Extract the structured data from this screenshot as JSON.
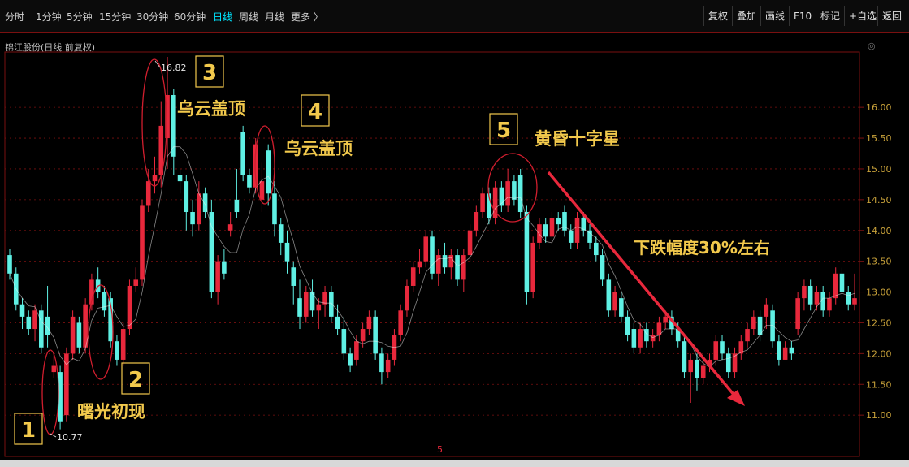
{
  "toolbar": {
    "tabs": [
      "分时",
      "1分钟",
      "5分钟",
      "15分钟",
      "30分钟",
      "60分钟",
      "日线",
      "周线",
      "月线",
      "更多 〉"
    ],
    "active_tab": "日线",
    "buttons": [
      "复权",
      "叠加",
      "画线",
      "F10",
      "标记",
      "+自选",
      "返回"
    ]
  },
  "stock_title": "锦江股份(日线 前复权)",
  "corner_mark": "◎",
  "colors": {
    "up": "#e8283c",
    "down": "#5ff0e4",
    "grid": "#7a1010",
    "annotation": "#f2c94c",
    "arrow": "#e8283c",
    "ma": "#f5f5f5"
  },
  "chart_data": {
    "type": "candlestick",
    "ylim": [
      10.6,
      16.9
    ],
    "y_ticks": [
      "16.00",
      "15.50",
      "15.00",
      "14.50",
      "14.00",
      "13.50",
      "13.00",
      "12.50",
      "12.00",
      "11.50",
      "11.00"
    ],
    "high_label": "16.82",
    "low_label": "10.77",
    "bottom_marker": "5",
    "candles": [
      [
        13.6,
        13.3,
        13.7,
        13.2
      ],
      [
        13.3,
        12.8,
        13.4,
        12.7
      ],
      [
        12.8,
        12.6,
        12.9,
        12.4
      ],
      [
        12.6,
        12.4,
        12.7,
        12.3
      ],
      [
        12.4,
        12.7,
        12.8,
        12.2
      ],
      [
        12.7,
        12.1,
        12.8,
        12.0
      ],
      [
        12.6,
        12.3,
        13.1,
        12.1
      ],
      [
        11.7,
        11.8,
        12.0,
        11.6
      ],
      [
        11.7,
        10.9,
        11.8,
        10.77
      ],
      [
        11.0,
        12.0,
        12.1,
        10.9
      ],
      [
        12.0,
        12.6,
        12.7,
        11.9
      ],
      [
        12.5,
        12.1,
        12.6,
        12.0
      ],
      [
        12.1,
        12.8,
        12.9,
        12.0
      ],
      [
        12.8,
        13.2,
        13.3,
        12.7
      ],
      [
        13.2,
        13.0,
        13.4,
        12.9
      ],
      [
        13.0,
        12.7,
        13.1,
        12.6
      ],
      [
        12.9,
        12.2,
        13.0,
        12.1
      ],
      [
        12.2,
        11.9,
        12.3,
        11.8
      ],
      [
        11.9,
        12.4,
        12.5,
        11.8
      ],
      [
        12.4,
        13.1,
        13.2,
        12.3
      ],
      [
        13.1,
        13.2,
        13.4,
        13.0
      ],
      [
        13.2,
        14.4,
        14.5,
        13.1
      ],
      [
        14.4,
        14.8,
        15.0,
        14.3
      ],
      [
        14.8,
        14.9,
        15.2,
        14.6
      ],
      [
        14.9,
        15.7,
        16.1,
        14.7
      ],
      [
        15.5,
        16.2,
        16.82,
        15.0
      ],
      [
        16.2,
        15.2,
        16.3,
        14.9
      ],
      [
        14.9,
        14.8,
        15.0,
        14.6
      ],
      [
        14.8,
        14.3,
        14.9,
        14.0
      ],
      [
        14.3,
        14.1,
        14.5,
        13.9
      ],
      [
        14.1,
        14.6,
        14.8,
        14.0
      ],
      [
        14.6,
        14.3,
        14.7,
        14.2
      ],
      [
        14.3,
        13.0,
        14.5,
        12.9
      ],
      [
        13.0,
        13.5,
        13.6,
        12.8
      ],
      [
        13.5,
        13.3,
        13.7,
        13.2
      ],
      [
        14.0,
        14.1,
        14.3,
        13.9
      ],
      [
        14.5,
        14.3,
        15.0,
        14.2
      ],
      [
        15.6,
        14.9,
        15.7,
        14.8
      ],
      [
        14.9,
        14.7,
        15.0,
        14.6
      ],
      [
        14.7,
        15.4,
        15.5,
        14.6
      ],
      [
        14.5,
        14.8,
        15.1,
        14.3
      ],
      [
        15.3,
        14.6,
        15.4,
        14.4
      ],
      [
        14.6,
        14.1,
        14.8,
        13.9
      ],
      [
        14.1,
        13.8,
        14.2,
        13.6
      ],
      [
        13.8,
        13.5,
        14.0,
        13.3
      ],
      [
        13.4,
        13.1,
        13.5,
        12.8
      ],
      [
        12.9,
        12.6,
        13.2,
        12.4
      ],
      [
        12.6,
        13.0,
        13.1,
        12.5
      ],
      [
        13.0,
        12.7,
        13.2,
        12.6
      ],
      [
        12.7,
        12.8,
        12.9,
        12.4
      ],
      [
        12.8,
        13.0,
        13.1,
        12.6
      ],
      [
        13.0,
        12.6,
        13.1,
        12.5
      ],
      [
        12.6,
        12.4,
        12.8,
        12.3
      ],
      [
        12.4,
        12.0,
        12.6,
        11.9
      ],
      [
        12.0,
        11.8,
        12.1,
        11.7
      ],
      [
        11.9,
        12.2,
        12.3,
        11.8
      ],
      [
        12.2,
        12.4,
        12.5,
        12.1
      ],
      [
        12.4,
        12.6,
        12.7,
        12.3
      ],
      [
        12.6,
        12.0,
        12.7,
        11.9
      ],
      [
        12.0,
        11.7,
        12.1,
        11.5
      ],
      [
        11.7,
        11.9,
        12.0,
        11.6
      ],
      [
        11.9,
        12.3,
        12.4,
        11.8
      ],
      [
        12.3,
        12.7,
        12.8,
        12.2
      ],
      [
        12.7,
        13.1,
        13.2,
        12.6
      ],
      [
        13.1,
        13.4,
        13.5,
        13.0
      ],
      [
        13.4,
        13.5,
        13.7,
        13.3
      ],
      [
        13.5,
        13.9,
        14.0,
        13.4
      ],
      [
        13.9,
        13.3,
        14.0,
        13.2
      ],
      [
        13.3,
        13.6,
        13.7,
        13.1
      ],
      [
        13.6,
        13.4,
        13.8,
        13.3
      ],
      [
        13.4,
        13.6,
        13.7,
        13.2
      ],
      [
        13.6,
        13.2,
        13.7,
        13.1
      ],
      [
        13.2,
        13.6,
        13.7,
        13.0
      ],
      [
        13.6,
        14.0,
        14.1,
        13.5
      ],
      [
        14.0,
        14.3,
        14.4,
        13.9
      ],
      [
        14.3,
        14.6,
        14.7,
        14.2
      ],
      [
        14.6,
        14.2,
        14.7,
        14.1
      ],
      [
        14.2,
        14.7,
        14.8,
        14.1
      ],
      [
        14.7,
        14.4,
        14.8,
        14.3
      ],
      [
        14.4,
        14.8,
        15.0,
        14.3
      ],
      [
        14.8,
        14.5,
        14.9,
        14.4
      ],
      [
        14.9,
        14.3,
        15.0,
        14.2
      ],
      [
        14.3,
        13.0,
        14.4,
        12.8
      ],
      [
        13.0,
        13.8,
        13.9,
        12.9
      ],
      [
        13.8,
        14.1,
        14.2,
        13.7
      ],
      [
        14.1,
        13.9,
        14.2,
        13.8
      ],
      [
        13.9,
        14.2,
        14.3,
        13.8
      ],
      [
        14.2,
        14.1,
        14.3,
        14.0
      ],
      [
        14.3,
        14.0,
        14.4,
        13.9
      ],
      [
        14.0,
        13.8,
        14.1,
        13.7
      ],
      [
        13.8,
        14.2,
        14.3,
        13.7
      ],
      [
        14.2,
        14.0,
        14.3,
        13.9
      ],
      [
        14.0,
        13.8,
        14.1,
        13.7
      ],
      [
        13.8,
        13.6,
        13.9,
        13.5
      ],
      [
        13.6,
        13.2,
        13.7,
        13.1
      ],
      [
        13.2,
        12.7,
        13.3,
        12.6
      ],
      [
        12.7,
        13.0,
        13.1,
        12.6
      ],
      [
        12.9,
        12.6,
        13.0,
        12.5
      ],
      [
        12.6,
        12.3,
        12.7,
        12.2
      ],
      [
        12.4,
        12.1,
        12.5,
        12.0
      ],
      [
        12.1,
        12.4,
        12.5,
        12.0
      ],
      [
        12.4,
        12.2,
        12.5,
        12.1
      ],
      [
        12.2,
        12.3,
        12.4,
        12.1
      ],
      [
        12.3,
        12.5,
        12.6,
        12.2
      ],
      [
        12.5,
        12.6,
        12.7,
        12.4
      ],
      [
        12.6,
        12.4,
        12.7,
        12.3
      ],
      [
        12.4,
        12.2,
        12.5,
        12.1
      ],
      [
        12.2,
        11.7,
        12.3,
        11.6
      ],
      [
        11.7,
        11.9,
        12.0,
        11.2
      ],
      [
        11.9,
        11.6,
        12.0,
        11.4
      ],
      [
        11.6,
        11.8,
        11.9,
        11.5
      ],
      [
        11.8,
        11.9,
        12.0,
        11.7
      ],
      [
        11.9,
        12.2,
        12.3,
        11.8
      ],
      [
        12.2,
        12.0,
        12.3,
        11.9
      ],
      [
        12.0,
        11.7,
        12.1,
        11.6
      ],
      [
        11.7,
        12.0,
        12.1,
        11.6
      ],
      [
        12.0,
        12.2,
        12.3,
        11.9
      ],
      [
        12.2,
        12.4,
        12.5,
        12.1
      ],
      [
        12.4,
        12.6,
        12.7,
        12.3
      ],
      [
        12.6,
        12.3,
        12.7,
        12.2
      ],
      [
        12.6,
        12.8,
        12.9,
        12.4
      ],
      [
        12.7,
        12.2,
        12.8,
        12.1
      ],
      [
        12.2,
        11.9,
        12.3,
        11.8
      ],
      [
        11.9,
        12.1,
        12.2,
        11.9
      ],
      [
        12.1,
        12.0,
        12.2,
        11.9
      ],
      [
        12.4,
        12.9,
        13.0,
        12.3
      ],
      [
        12.9,
        13.1,
        13.2,
        12.7
      ],
      [
        13.1,
        12.8,
        13.2,
        12.7
      ],
      [
        12.8,
        13.0,
        13.1,
        12.7
      ],
      [
        13.0,
        12.7,
        13.1,
        12.6
      ],
      [
        12.7,
        12.9,
        13.0,
        12.6
      ],
      [
        12.9,
        13.3,
        13.4,
        12.8
      ],
      [
        13.3,
        13.0,
        13.4,
        12.9
      ],
      [
        13.0,
        12.8,
        13.1,
        12.7
      ],
      [
        12.8,
        12.9,
        13.3,
        12.7
      ]
    ],
    "annotations": [
      {
        "label": "1",
        "text": ""
      },
      {
        "label": "2",
        "text": "曙光初现"
      },
      {
        "label": "3",
        "text": "乌云盖顶"
      },
      {
        "label": "4",
        "text": "乌云盖顶"
      },
      {
        "label": "5",
        "text": "黄昏十字星"
      }
    ],
    "arrow_text": "下跌幅度30%左右"
  }
}
